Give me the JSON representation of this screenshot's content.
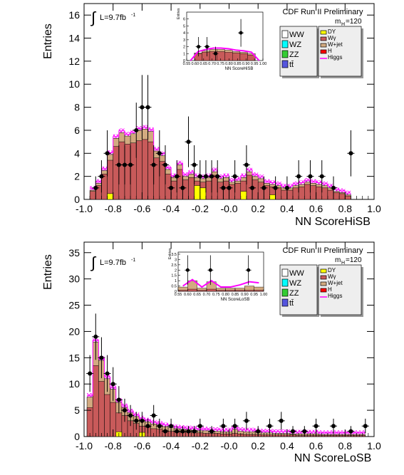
{
  "chart_data": [
    {
      "type": "histogram",
      "header": "CDF Run II Preliminary",
      "lumi": "L=9.7fb",
      "lumi_sup": "-1",
      "integral": "∫",
      "mass_label": "m",
      "mass_sub": "H",
      "mass_value": "=120",
      "ylabel": "Entries",
      "xlabel": "NN ScoreHiSB",
      "xlim": [
        -1.0,
        1.0
      ],
      "ylim": [
        0,
        17
      ],
      "xticks": [
        "-1.0",
        "-0.8",
        "-0.6",
        "-0.4",
        "-0.2",
        "-0.0",
        "0.2",
        "0.4",
        "0.6",
        "0.8",
        "1.0"
      ],
      "yticks": [
        "0",
        "2",
        "4",
        "6",
        "8",
        "10",
        "12",
        "14",
        "16"
      ],
      "legend_left": [
        "WW",
        "WZ",
        "ZZ",
        "tt̄"
      ],
      "legend_right": [
        "DY",
        "Wγ",
        "W+jet",
        "H",
        "Higgs"
      ],
      "colors": {
        "WW": "#ffffff",
        "WZ": "#00ffff",
        "ZZ": "#33cc33",
        "tt": "#5555dd",
        "DY": "#ffff00",
        "Wgamma": "#c85a5a",
        "Wjet": "#d2aa80",
        "H": "#ff0000",
        "Higgs": "#ff00ff"
      },
      "bin_edges_start": -0.96,
      "bin_width": 0.04,
      "stack_wgamma": [
        0.7,
        1.2,
        2.2,
        3.4,
        4.6,
        5.0,
        4.8,
        4.9,
        5.1,
        5.2,
        5.0,
        3.6,
        3.3,
        2.2,
        1.6,
        2.6,
        1.7,
        1.9,
        1.6,
        1.5,
        1.6,
        2.1,
        1.5,
        1.6,
        1.3,
        1.4,
        1.6,
        2.1,
        1.7,
        1.5,
        1.2,
        1.1,
        1.0,
        0.8,
        0.8,
        1.0,
        1.1,
        1.3,
        1.2,
        1.1,
        1.0,
        0.8,
        0.6,
        0.5,
        0.3
      ],
      "stack_total": [
        0.8,
        1.4,
        2.5,
        3.9,
        5.3,
        5.8,
        5.5,
        5.7,
        6.0,
        6.1,
        5.9,
        4.2,
        3.8,
        2.6,
        1.9,
        3.0,
        2.0,
        2.2,
        1.9,
        1.8,
        1.9,
        2.4,
        1.8,
        1.9,
        1.5,
        1.6,
        1.9,
        2.4,
        2.0,
        1.8,
        1.4,
        1.3,
        1.2,
        1.0,
        1.0,
        1.2,
        1.3,
        1.5,
        1.4,
        1.3,
        1.2,
        1.0,
        0.7,
        0.6,
        0.4
      ],
      "dy_bins": [
        {
          "x0": -0.84,
          "x1": -0.8,
          "h": 0.5
        },
        {
          "x0": -0.24,
          "x1": -0.2,
          "h": 1.2
        },
        {
          "x0": -0.2,
          "x1": -0.16,
          "h": 1.0
        },
        {
          "x0": 0.08,
          "x1": 0.12,
          "h": 0.7
        },
        {
          "x0": 0.28,
          "x1": 0.32,
          "h": 0.4
        }
      ],
      "data_points": [
        {
          "x": -0.92,
          "y": 1,
          "e": 1.0
        },
        {
          "x": -0.88,
          "y": 2,
          "e": 1.4
        },
        {
          "x": -0.84,
          "y": 4,
          "e": 2.0
        },
        {
          "x": -0.76,
          "y": 3,
          "e": 1.7
        },
        {
          "x": -0.72,
          "y": 3,
          "e": 1.7
        },
        {
          "x": -0.68,
          "y": 3,
          "e": 1.7
        },
        {
          "x": -0.64,
          "y": 6,
          "e": 2.4
        },
        {
          "x": -0.6,
          "y": 8,
          "e": 2.8
        },
        {
          "x": -0.56,
          "y": 8,
          "e": 2.8
        },
        {
          "x": -0.52,
          "y": 3,
          "e": 1.7
        },
        {
          "x": -0.48,
          "y": 4,
          "e": 2.0
        },
        {
          "x": -0.44,
          "y": 3,
          "e": 1.7
        },
        {
          "x": -0.4,
          "y": 1,
          "e": 1.0
        },
        {
          "x": -0.36,
          "y": 2,
          "e": 1.4
        },
        {
          "x": -0.32,
          "y": 1,
          "e": 1.0
        },
        {
          "x": -0.28,
          "y": 5,
          "e": 2.2
        },
        {
          "x": -0.24,
          "y": 3,
          "e": 1.7
        },
        {
          "x": -0.2,
          "y": 2,
          "e": 1.4
        },
        {
          "x": -0.16,
          "y": 2,
          "e": 1.4
        },
        {
          "x": -0.12,
          "y": 2,
          "e": 1.4
        },
        {
          "x": -0.08,
          "y": 2,
          "e": 1.4
        },
        {
          "x": -0.04,
          "y": 1,
          "e": 1.0
        },
        {
          "x": 0.0,
          "y": 1,
          "e": 1.0
        },
        {
          "x": 0.04,
          "y": 2,
          "e": 1.4
        },
        {
          "x": 0.12,
          "y": 3,
          "e": 1.7
        },
        {
          "x": 0.16,
          "y": 1,
          "e": 1.0
        },
        {
          "x": 0.24,
          "y": 1,
          "e": 1.0
        },
        {
          "x": 0.32,
          "y": 1,
          "e": 1.0
        },
        {
          "x": 0.4,
          "y": 1,
          "e": 1.0
        },
        {
          "x": 0.48,
          "y": 2,
          "e": 1.4
        },
        {
          "x": 0.56,
          "y": 2,
          "e": 1.4
        },
        {
          "x": 0.64,
          "y": 2,
          "e": 1.4
        },
        {
          "x": 0.72,
          "y": 1,
          "e": 1.0
        },
        {
          "x": 0.84,
          "y": 4,
          "e": 2.0
        }
      ],
      "inset": {
        "xlabel": "NN ScoreHiSB",
        "ylabel": "Entries",
        "xlim": [
          0.55,
          1.0
        ],
        "ylim": [
          0,
          7
        ],
        "xticks": [
          "0.55",
          "0.60",
          "0.65",
          "0.70",
          "0.75",
          "0.80",
          "0.85",
          "0.90",
          "0.95",
          "1.00"
        ],
        "yticks": [
          "0",
          "1",
          "2",
          "3",
          "4",
          "5",
          "6"
        ],
        "stack_wgamma": [
          0.0,
          1.0,
          1.2,
          1.3,
          1.3,
          1.2,
          1.1,
          1.0,
          0.8,
          0.0
        ],
        "stack_total": [
          0.0,
          1.1,
          1.4,
          1.6,
          1.6,
          1.5,
          1.3,
          1.2,
          1.0,
          0.0
        ],
        "data_points": [
          {
            "x": 0.62,
            "y": 2,
            "e": 1.4
          },
          {
            "x": 0.67,
            "y": 2,
            "e": 1.4
          },
          {
            "x": 0.72,
            "y": 1,
            "e": 1.0
          },
          {
            "x": 0.87,
            "y": 4,
            "e": 2.0
          }
        ]
      }
    },
    {
      "type": "histogram",
      "header": "CDF Run II Preliminary",
      "lumi": "L=9.7fb",
      "lumi_sup": "-1",
      "integral": "∫",
      "mass_label": "m",
      "mass_sub": "H",
      "mass_value": "=120",
      "ylabel": "Entries",
      "xlabel": "NN ScoreLoSB",
      "xlim": [
        -1.0,
        1.0
      ],
      "ylim": [
        0,
        37
      ],
      "xticks": [
        "-1.0",
        "-0.8",
        "-0.6",
        "-0.4",
        "-0.2",
        "-0.0",
        "0.2",
        "0.4",
        "0.6",
        "0.8",
        "1.0"
      ],
      "yticks": [
        "0",
        "5",
        "10",
        "15",
        "20",
        "25",
        "30",
        "35"
      ],
      "legend_left": [
        "WW",
        "WZ",
        "ZZ",
        "tt̄"
      ],
      "legend_right": [
        "DY",
        "Wγ",
        "W+jet",
        "H",
        "Higgs"
      ],
      "colors": {
        "WW": "#ffffff",
        "WZ": "#00ffff",
        "ZZ": "#33cc33",
        "tt": "#5555dd",
        "DY": "#ffff00",
        "Wgamma": "#c85a5a",
        "Wjet": "#d2aa80",
        "H": "#ff0000",
        "Higgs": "#ff00ff"
      },
      "bin_edges_start": -0.98,
      "bin_width": 0.04,
      "stack_wgamma": [
        5.5,
        13.5,
        10.5,
        8.0,
        6.5,
        4.5,
        4.0,
        3.0,
        2.5,
        2.0,
        1.8,
        1.5,
        1.4,
        1.2,
        1.0,
        0.9,
        0.8,
        0.8,
        0.7,
        0.7,
        0.6,
        0.6,
        0.6,
        0.5,
        0.5,
        0.6,
        0.5,
        0.4,
        0.4,
        0.4,
        0.3,
        0.3,
        0.3,
        0.3,
        0.3,
        0.3,
        0.2,
        0.2,
        0.2,
        0.2,
        0.2,
        0.2,
        0.2,
        0.2,
        0.2,
        0.2,
        0.2,
        0.2
      ],
      "stack_total": [
        7.5,
        18.0,
        14.5,
        11.0,
        9.0,
        6.5,
        5.5,
        4.5,
        3.8,
        3.2,
        2.8,
        2.4,
        2.2,
        1.9,
        1.7,
        1.5,
        1.4,
        1.3,
        1.2,
        1.1,
        1.1,
        1.0,
        1.0,
        0.9,
        0.9,
        1.4,
        1.0,
        0.9,
        0.9,
        0.8,
        0.7,
        0.7,
        0.6,
        0.6,
        0.6,
        0.5,
        0.5,
        0.5,
        0.5,
        0.5,
        0.4,
        0.4,
        0.4,
        0.4,
        0.4,
        0.4,
        0.4,
        0.4
      ],
      "dy_bins": [
        {
          "x0": -0.78,
          "x1": -0.74,
          "h": 0.9
        },
        {
          "x0": -0.62,
          "x1": -0.58,
          "h": 0.8
        }
      ],
      "data_points": [
        {
          "x": -0.96,
          "y": 12,
          "e": 3.5
        },
        {
          "x": -0.92,
          "y": 19,
          "e": 4.4
        },
        {
          "x": -0.88,
          "y": 15,
          "e": 3.9
        },
        {
          "x": -0.84,
          "y": 12,
          "e": 3.5
        },
        {
          "x": -0.8,
          "y": 10,
          "e": 3.2
        },
        {
          "x": -0.76,
          "y": 7,
          "e": 2.6
        },
        {
          "x": -0.72,
          "y": 5,
          "e": 2.2
        },
        {
          "x": -0.68,
          "y": 4,
          "e": 2.0
        },
        {
          "x": -0.64,
          "y": 3,
          "e": 1.7
        },
        {
          "x": -0.6,
          "y": 3,
          "e": 1.7
        },
        {
          "x": -0.56,
          "y": 2,
          "e": 1.4
        },
        {
          "x": -0.52,
          "y": 4,
          "e": 2.0
        },
        {
          "x": -0.48,
          "y": 2,
          "e": 1.4
        },
        {
          "x": -0.44,
          "y": 1,
          "e": 1.0
        },
        {
          "x": -0.4,
          "y": 2,
          "e": 1.4
        },
        {
          "x": -0.36,
          "y": 1,
          "e": 1.0
        },
        {
          "x": -0.32,
          "y": 1,
          "e": 1.0
        },
        {
          "x": -0.28,
          "y": 1,
          "e": 1.0
        },
        {
          "x": -0.24,
          "y": 1,
          "e": 1.0
        },
        {
          "x": -0.2,
          "y": 2,
          "e": 1.4
        },
        {
          "x": -0.12,
          "y": 1,
          "e": 1.0
        },
        {
          "x": -0.04,
          "y": 2,
          "e": 1.4
        },
        {
          "x": 0.04,
          "y": 2,
          "e": 1.4
        },
        {
          "x": 0.12,
          "y": 3,
          "e": 1.7
        },
        {
          "x": 0.2,
          "y": 1,
          "e": 1.0
        },
        {
          "x": 0.28,
          "y": 2,
          "e": 1.4
        },
        {
          "x": 0.36,
          "y": 3,
          "e": 1.7
        },
        {
          "x": 0.44,
          "y": 1,
          "e": 1.0
        },
        {
          "x": 0.52,
          "y": 1,
          "e": 1.0
        },
        {
          "x": 0.6,
          "y": 2,
          "e": 1.4
        },
        {
          "x": 0.72,
          "y": 2,
          "e": 1.4
        },
        {
          "x": 0.84,
          "y": 1,
          "e": 1.0
        },
        {
          "x": 0.94,
          "y": 2,
          "e": 1.4
        }
      ],
      "inset": {
        "xlabel": "NN ScoreLoSB",
        "ylabel": "Entries",
        "xlim": [
          0.55,
          1.0
        ],
        "ylim": [
          0,
          3.7
        ],
        "xticks": [
          "0.55",
          "0.60",
          "0.65",
          "0.70",
          "0.75",
          "0.80",
          "0.85",
          "0.90",
          "0.95",
          "1.00"
        ],
        "yticks": [
          "0",
          "0.5",
          "1",
          "1.5",
          "2",
          "2.5",
          "3",
          "3.5"
        ],
        "stack_wgamma": [
          0.1,
          0.2,
          0.1,
          0.2,
          0.1,
          0.1,
          0.1,
          0.1,
          0.1
        ],
        "stack_total": [
          0.4,
          1.0,
          0.3,
          0.9,
          0.3,
          0.3,
          0.3,
          0.5,
          0.4
        ],
        "higgs_top": [
          0.5,
          1.1,
          0.4,
          1.0,
          0.4,
          0.4,
          0.6,
          0.9,
          0.8
        ],
        "data_points": [
          {
            "x": 0.6,
            "y": 2,
            "e": 1.4
          },
          {
            "x": 0.72,
            "y": 2,
            "e": 1.4
          },
          {
            "x": 0.92,
            "y": 2,
            "e": 1.4
          }
        ]
      }
    }
  ]
}
